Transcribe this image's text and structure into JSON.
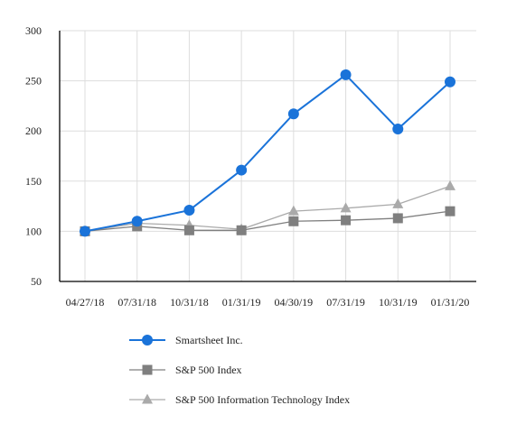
{
  "chart_data": {
    "type": "line",
    "title": "",
    "xlabel": "",
    "ylabel": "",
    "categories": [
      "04/27/18",
      "07/31/18",
      "10/31/18",
      "01/31/19",
      "04/30/19",
      "07/31/19",
      "10/31/19",
      "01/31/20"
    ],
    "ylim": [
      50,
      300
    ],
    "yticks": [
      50,
      100,
      150,
      200,
      250,
      300
    ],
    "grid": true,
    "legend_position": "bottom-left",
    "series": [
      {
        "name": "Smartsheet Inc.",
        "marker": "circle",
        "color": "#1a73d9",
        "values": [
          100,
          110,
          121,
          161,
          217,
          256,
          202,
          249
        ]
      },
      {
        "name": "S&P 500 Index",
        "marker": "square",
        "color": "#7f7f7f",
        "values": [
          100,
          105,
          101,
          101,
          110,
          111,
          113,
          120
        ]
      },
      {
        "name": "S&P 500 Information Technology Index",
        "marker": "triangle",
        "color": "#aaaaaa",
        "values": [
          100,
          108,
          106,
          102,
          120,
          123,
          127,
          145
        ]
      }
    ]
  }
}
